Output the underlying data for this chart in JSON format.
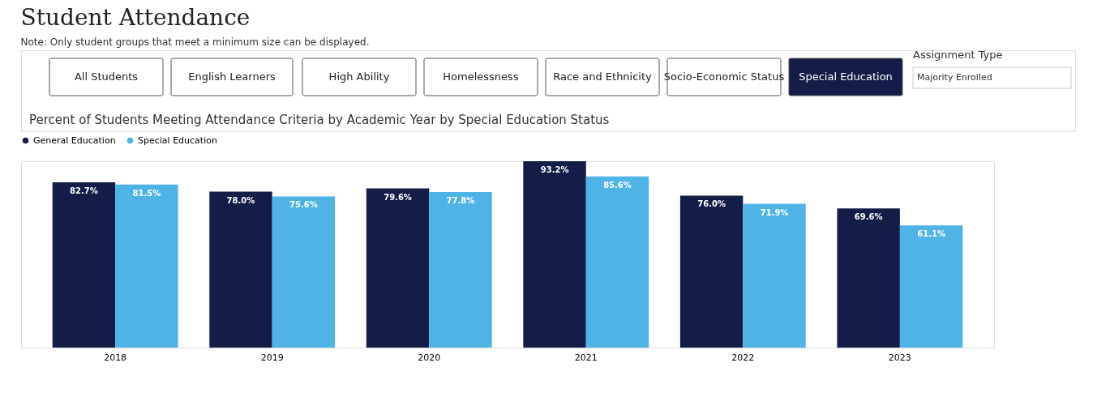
{
  "chart_data": {
    "type": "bar",
    "title": "Student Attendance",
    "subtitle": "Note: Only student groups that meet a minimum size can be displayed.",
    "annotations": [
      "All Students",
      "English Learners",
      "High Ability",
      "Homelessness",
      "Race and Ethnicity",
      "Socio-Economic Status",
      "Special Education",
      "Assignment Type",
      "Majority Enrolled",
      "Percent of Students Meeting Attendance Criteria by Academic Year by Special Education Status"
    ],
    "categories": [
      "2018",
      "2019",
      "2020",
      "2021",
      "2022",
      "2023"
    ],
    "series": [
      {
        "name": "General Education",
        "color": "#141c48",
        "values": [
          82.7,
          78.0,
          79.6,
          93.2,
          76.0,
          69.6
        ],
        "value_labels": [
          "82.7%",
          "78.0%",
          "79.6%",
          "93.2%",
          "76.0%",
          "69.6%"
        ]
      },
      {
        "name": "Special Education",
        "color": "#4fb3e6",
        "values": [
          81.5,
          75.6,
          77.8,
          85.6,
          71.9,
          61.1
        ],
        "value_labels": [
          "81.5%",
          "75.6%",
          "77.8%",
          "85.6%",
          "71.9%",
          "61.1%"
        ]
      }
    ],
    "legend": "top left",
    "grid": false
  }
}
